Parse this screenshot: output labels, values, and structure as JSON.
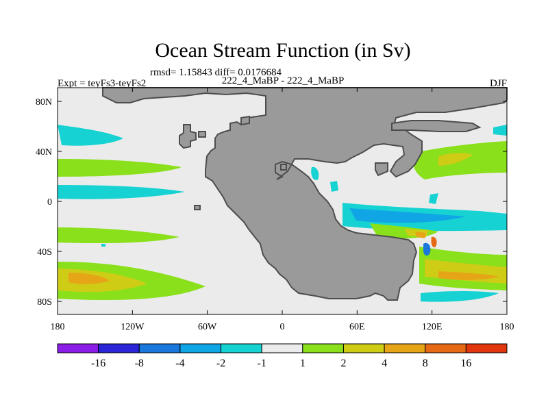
{
  "title": "Ocean Stream Function (in Sv)",
  "stats_line": "rmsd= 1.15843 diff= 0.0176684",
  "left_label": "Expt = teyFs3-teyFs2",
  "center_label": "222_4_MaBP - 222_4_MaBP",
  "right_label": "DJF",
  "map": {
    "x_ticks": [
      "180",
      "120W",
      "60W",
      "0",
      "60E",
      "120E",
      "180"
    ],
    "y_ticks": [
      "80N",
      "40N",
      "0",
      "40S",
      "80S"
    ],
    "land_color": "#9a9a9a",
    "ocean_color": "#ebebeb",
    "coastline_color": "#4d4d4d"
  },
  "colorbar": {
    "tick_labels": [
      "-16",
      "-8",
      "-4",
      "-2",
      "-1",
      "1",
      "2",
      "4",
      "8",
      "16"
    ],
    "colors": [
      "#8a1ee6",
      "#2a26d8",
      "#1a78dc",
      "#10a6e6",
      "#16d2d2",
      "#ebebeb",
      "#8ae01a",
      "#cfcc16",
      "#e6a516",
      "#e66a16",
      "#e2360e"
    ]
  }
}
